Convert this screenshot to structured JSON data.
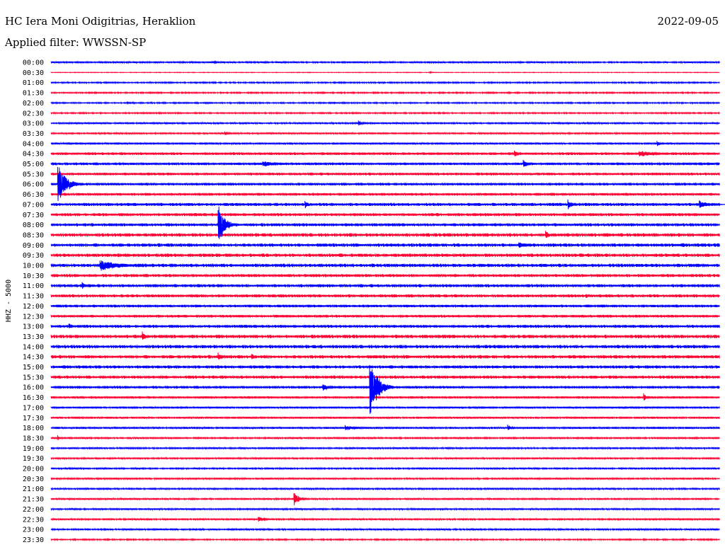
{
  "header": {
    "station": "HC Iera Moni Odigitrias, Heraklion",
    "date": "2022-09-05",
    "filter": "Applied filter: WWSSN-SP"
  },
  "chart_data": {
    "type": "line",
    "title": "HC Iera Moni Odigitrias, Heraklion",
    "subtitle": "Applied filter: WWSSN-SP",
    "date": "2022-09-05",
    "ylabel": "HHZ - 5000",
    "series_colors": [
      "#0000ff",
      "#ff0033"
    ],
    "traces": [
      "00:00",
      "00:30",
      "01:00",
      "01:30",
      "02:00",
      "02:30",
      "03:00",
      "03:30",
      "04:00",
      "04:30",
      "05:00",
      "05:30",
      "06:00",
      "06:30",
      "07:00",
      "07:30",
      "08:00",
      "08:30",
      "09:00",
      "09:30",
      "10:00",
      "10:30",
      "11:00",
      "11:30",
      "12:00",
      "12:30",
      "13:00",
      "13:30",
      "14:00",
      "14:30",
      "15:00",
      "15:30",
      "16:00",
      "16:30",
      "17:00",
      "17:30",
      "18:00",
      "18:30",
      "19:00",
      "19:30",
      "20:00",
      "20:30",
      "21:00",
      "21:30",
      "22:00",
      "22:30",
      "23:00",
      "23:30"
    ],
    "noise_level": [
      1,
      0.4,
      0.8,
      0.8,
      0.8,
      0.8,
      1,
      1,
      1.2,
      1.6,
      1.6,
      1.6,
      1.6,
      1.6,
      1.8,
      1.8,
      1.8,
      2,
      2,
      2,
      2,
      1.8,
      1.8,
      1.8,
      1.6,
      1.6,
      1.8,
      2,
      2,
      2,
      1.8,
      1.8,
      1.6,
      1.4,
      1.2,
      1.2,
      1.2,
      1.0,
      1.0,
      1.0,
      1.0,
      1.0,
      1.0,
      1.0,
      1.0,
      1.0,
      1.0,
      0.8
    ],
    "events": [
      {
        "trace": 0,
        "minute": 7.3,
        "amplitude": 2,
        "duration": 0.4
      },
      {
        "trace": 1,
        "minute": 17,
        "amplitude": 2,
        "duration": 0.1
      },
      {
        "trace": 4,
        "minute": 3.4,
        "amplitude": 2,
        "duration": 0.1
      },
      {
        "trace": 4,
        "minute": 12.7,
        "amplitude": 2,
        "duration": 0.1
      },
      {
        "trace": 6,
        "minute": 13.8,
        "amplitude": 4,
        "duration": 0.6
      },
      {
        "trace": 7,
        "minute": 7.8,
        "amplitude": 3,
        "duration": 0.6
      },
      {
        "trace": 8,
        "minute": 27.2,
        "amplitude": 4,
        "duration": 0.5
      },
      {
        "trace": 9,
        "minute": 20.8,
        "amplitude": 6,
        "duration": 0.5
      },
      {
        "trace": 9,
        "minute": 26.4,
        "amplitude": 5,
        "duration": 1.8
      },
      {
        "trace": 10,
        "minute": 9.5,
        "amplitude": 5,
        "duration": 1.5
      },
      {
        "trace": 10,
        "minute": 21.2,
        "amplitude": 8,
        "duration": 0.5
      },
      {
        "trace": 12,
        "minute": 0.3,
        "amplitude": 30,
        "duration": 1.1
      },
      {
        "trace": 14,
        "minute": 11.4,
        "amplitude": 6,
        "duration": 0.5
      },
      {
        "trace": 14,
        "minute": 23.2,
        "amplitude": 8,
        "duration": 0.5
      },
      {
        "trace": 14,
        "minute": 29.1,
        "amplitude": 6,
        "duration": 1.2
      },
      {
        "trace": 16,
        "minute": 7.5,
        "amplitude": 30,
        "duration": 0.9
      },
      {
        "trace": 17,
        "minute": 22.2,
        "amplitude": 7,
        "duration": 0.5
      },
      {
        "trace": 18,
        "minute": 21.0,
        "amplitude": 5,
        "duration": 0.8
      },
      {
        "trace": 20,
        "minute": 2.2,
        "amplitude": 8,
        "duration": 3.2
      },
      {
        "trace": 22,
        "minute": 1.4,
        "amplitude": 6,
        "duration": 0.4
      },
      {
        "trace": 23,
        "minute": 24.0,
        "amplitude": 4,
        "duration": 0.5
      },
      {
        "trace": 26,
        "minute": 0.8,
        "amplitude": 6,
        "duration": 0.3
      },
      {
        "trace": 27,
        "minute": 4.1,
        "amplitude": 7,
        "duration": 0.5
      },
      {
        "trace": 29,
        "minute": 7.5,
        "amplitude": 6,
        "duration": 0.6
      },
      {
        "trace": 29,
        "minute": 9.0,
        "amplitude": 6,
        "duration": 0.4
      },
      {
        "trace": 32,
        "minute": 12.2,
        "amplitude": 5,
        "duration": 0.9
      },
      {
        "trace": 32,
        "minute": 14.3,
        "amplitude": 45,
        "duration": 1.1
      },
      {
        "trace": 33,
        "minute": 26.6,
        "amplitude": 6,
        "duration": 0.4
      },
      {
        "trace": 36,
        "minute": 13.2,
        "amplitude": 4,
        "duration": 1.2
      },
      {
        "trace": 36,
        "minute": 20.5,
        "amplitude": 5,
        "duration": 0.5
      },
      {
        "trace": 37,
        "minute": 0.3,
        "amplitude": 4,
        "duration": 0.2
      },
      {
        "trace": 43,
        "minute": 10.9,
        "amplitude": 10,
        "duration": 0.7
      },
      {
        "trace": 45,
        "minute": 9.3,
        "amplitude": 4,
        "duration": 0.8
      }
    ]
  }
}
